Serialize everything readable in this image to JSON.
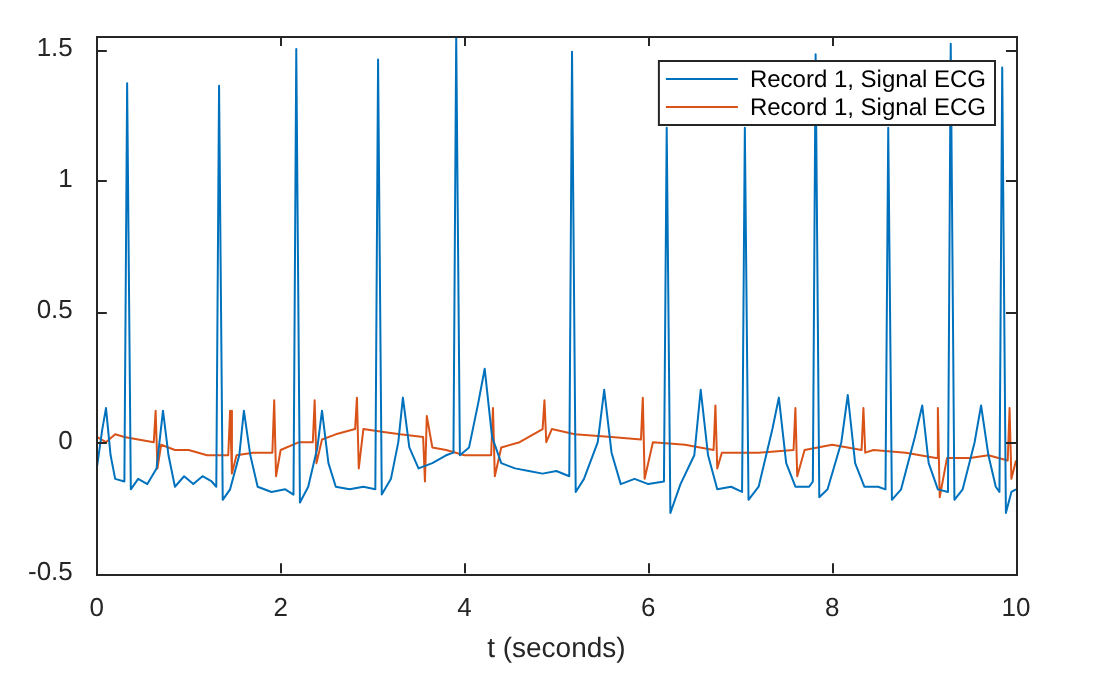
{
  "chart_data": {
    "type": "line",
    "xlabel": "t (seconds)",
    "xlim": [
      0,
      10
    ],
    "xticks": [
      0,
      2,
      4,
      6,
      8,
      10
    ],
    "ylim": [
      -0.5,
      1.55
    ],
    "yticks": [
      -0.5,
      0,
      0.5,
      1,
      1.5
    ],
    "legend": "top right",
    "marker": "none",
    "line_style": "solid",
    "grid": false,
    "series": [
      {
        "name": "Record 1, Signal ECG",
        "color": "#0072bd",
        "x": [
          0,
          0.06,
          0.1,
          0.15,
          0.2,
          0.3,
          0.33,
          0.37,
          0.45,
          0.55,
          0.65,
          0.72,
          0.78,
          0.85,
          0.95,
          1.05,
          1.15,
          1.25,
          1.3,
          1.33,
          1.37,
          1.45,
          1.55,
          1.6,
          1.67,
          1.75,
          1.9,
          2.05,
          2.14,
          2.17,
          2.21,
          2.3,
          2.4,
          2.45,
          2.52,
          2.6,
          2.75,
          2.9,
          3.03,
          3.06,
          3.1,
          3.2,
          3.28,
          3.33,
          3.4,
          3.5,
          3.65,
          3.8,
          3.88,
          3.91,
          3.95,
          4.05,
          4.15,
          4.22,
          4.3,
          4.4,
          4.55,
          4.7,
          4.85,
          5,
          5.14,
          5.17,
          5.21,
          5.3,
          5.45,
          5.52,
          5.6,
          5.7,
          5.85,
          6,
          6.17,
          6.2,
          6.24,
          6.35,
          6.5,
          6.57,
          6.65,
          6.75,
          6.9,
          7.02,
          7.05,
          7.09,
          7.2,
          7.35,
          7.42,
          7.5,
          7.6,
          7.75,
          7.79,
          7.82,
          7.86,
          7.95,
          8.1,
          8.17,
          8.25,
          8.35,
          8.5,
          8.58,
          8.61,
          8.65,
          8.75,
          8.9,
          8.98,
          9.05,
          9.15,
          9.26,
          9.29,
          9.33,
          9.42,
          9.55,
          9.62,
          9.7,
          9.78,
          9.82,
          9.85,
          9.89,
          9.95,
          10
        ],
        "values": [
          -0.1,
          0.05,
          0.13,
          -0.05,
          -0.14,
          -0.15,
          1.37,
          -0.18,
          -0.14,
          -0.16,
          -0.1,
          0.12,
          -0.05,
          -0.17,
          -0.13,
          -0.16,
          -0.13,
          -0.15,
          -0.17,
          1.36,
          -0.22,
          -0.18,
          -0.05,
          0.12,
          -0.05,
          -0.17,
          -0.19,
          -0.18,
          -0.2,
          1.5,
          -0.23,
          -0.17,
          -0.02,
          0.12,
          -0.08,
          -0.17,
          -0.18,
          -0.17,
          -0.18,
          1.46,
          -0.2,
          -0.14,
          0,
          0.17,
          -0.02,
          -0.1,
          -0.08,
          -0.05,
          -0.04,
          1.55,
          -0.05,
          -0.02,
          0.15,
          0.28,
          0.02,
          -0.08,
          -0.1,
          -0.11,
          -0.12,
          -0.11,
          -0.13,
          1.49,
          -0.19,
          -0.14,
          0,
          0.2,
          -0.04,
          -0.16,
          -0.14,
          -0.16,
          -0.15,
          1.2,
          -0.27,
          -0.16,
          -0.05,
          0.2,
          -0.05,
          -0.18,
          -0.17,
          -0.19,
          1.2,
          -0.22,
          -0.17,
          0.05,
          0.17,
          -0.08,
          -0.17,
          -0.17,
          -0.15,
          1.48,
          -0.21,
          -0.18,
          0,
          0.18,
          -0.08,
          -0.17,
          -0.17,
          -0.18,
          1.2,
          -0.22,
          -0.18,
          0.02,
          0.14,
          -0.08,
          -0.18,
          -0.19,
          1.52,
          -0.22,
          -0.18,
          0,
          0.14,
          -0.05,
          -0.17,
          -0.19,
          1.43,
          -0.27,
          -0.19,
          -0.18
        ]
      },
      {
        "name": "Record 1, Signal ECG",
        "color": "#d95319",
        "x": [
          0,
          0.1,
          0.2,
          0.3,
          0.45,
          0.62,
          0.64,
          0.66,
          0.7,
          0.85,
          1,
          1.2,
          1.43,
          1.45,
          1.47,
          1.52,
          1.7,
          1.91,
          1.93,
          1.95,
          2.0,
          2.2,
          2.35,
          2.37,
          2.39,
          2.45,
          2.6,
          2.81,
          2.83,
          2.85,
          2.9,
          3.1,
          3.3,
          3.55,
          3.57,
          3.59,
          3.65,
          3.8,
          4.0,
          4.29,
          4.31,
          4.33,
          4.4,
          4.6,
          4.85,
          4.87,
          4.89,
          4.95,
          5.2,
          5.6,
          5.92,
          5.94,
          5.96,
          6.05,
          6.4,
          6.71,
          6.73,
          6.75,
          6.8,
          7.2,
          7.58,
          7.6,
          7.62,
          7.7,
          8.0,
          8.32,
          8.34,
          8.36,
          8.45,
          8.8,
          9.13,
          9.15,
          9.17,
          9.25,
          9.5,
          9.7,
          9.91,
          9.93,
          9.95,
          10
        ],
        "values": [
          0.02,
          0,
          0.03,
          0.02,
          0.01,
          0,
          0.12,
          -0.1,
          -0.01,
          -0.03,
          -0.03,
          -0.05,
          -0.05,
          0.12,
          -0.12,
          -0.05,
          -0.04,
          -0.04,
          0.16,
          -0.13,
          -0.03,
          0,
          0,
          0.16,
          -0.08,
          0.01,
          0.03,
          0.05,
          0.17,
          -0.1,
          0.05,
          0.04,
          0.03,
          0.02,
          -0.15,
          0.1,
          -0.02,
          -0.03,
          -0.05,
          -0.05,
          0.13,
          -0.13,
          -0.02,
          0,
          0.05,
          0.16,
          0,
          0.05,
          0.03,
          0.02,
          0.01,
          0.17,
          -0.14,
          0,
          -0.01,
          -0.03,
          0.14,
          -0.1,
          -0.04,
          -0.04,
          -0.03,
          0.13,
          -0.13,
          -0.03,
          -0.01,
          -0.03,
          0.13,
          -0.04,
          -0.03,
          -0.04,
          -0.06,
          0.13,
          -0.21,
          -0.06,
          -0.06,
          -0.05,
          -0.07,
          0.13,
          -0.14,
          -0.07
        ]
      }
    ]
  }
}
